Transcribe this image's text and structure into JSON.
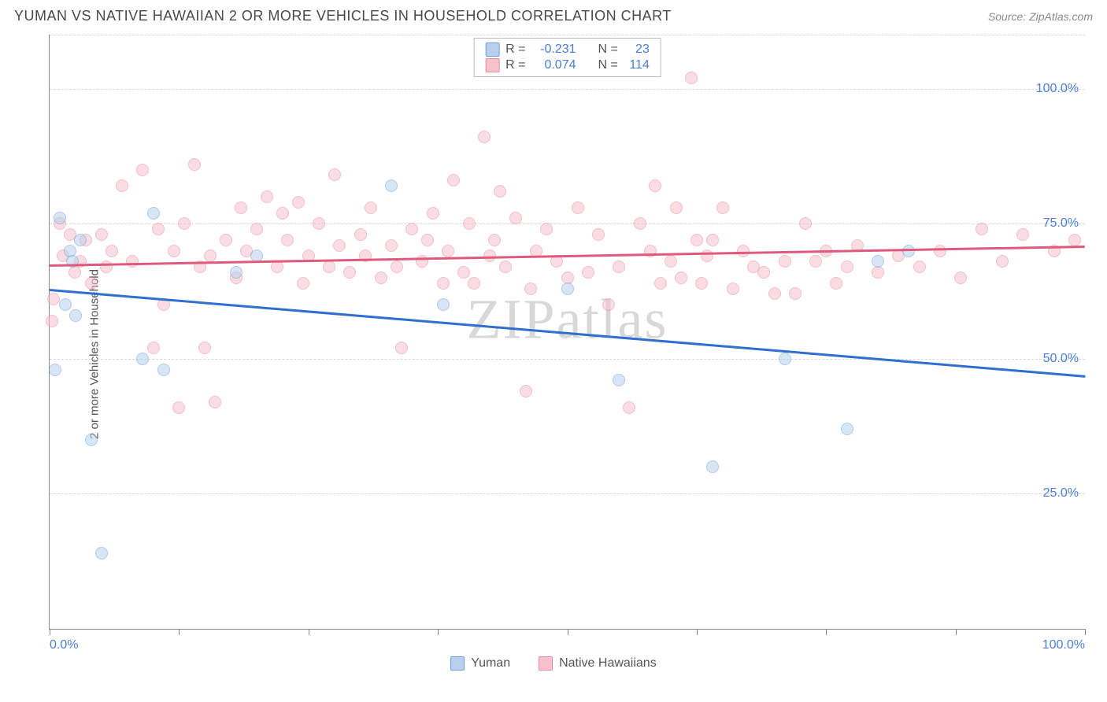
{
  "title": "YUMAN VS NATIVE HAWAIIAN 2 OR MORE VEHICLES IN HOUSEHOLD CORRELATION CHART",
  "source": "Source: ZipAtlas.com",
  "watermark": "ZIPatlas",
  "ylabel": "2 or more Vehicles in Household",
  "chart": {
    "type": "scatter",
    "xlim": [
      0,
      100
    ],
    "ylim": [
      0,
      110
    ],
    "background_color": "#ffffff",
    "grid_color": "#d8d8d8",
    "axis_color": "#888888",
    "tick_color": "#4a7fd6",
    "xtick_positions": [
      0,
      12.5,
      25,
      37.5,
      50,
      62.5,
      75,
      87.5,
      100
    ],
    "xtick_labels": {
      "0": "0.0%",
      "100": "100.0%"
    },
    "ytick_positions": [
      25,
      50,
      75,
      100
    ],
    "ytick_labels": {
      "25": "25.0%",
      "50": "50.0%",
      "75": "75.0%",
      "100": "100.0%"
    },
    "point_radius": 8,
    "point_opacity": 0.55
  },
  "series": {
    "yuman": {
      "label": "Yuman",
      "fill_color": "#b9d0ec",
      "stroke_color": "#6f9fd8",
      "R": "-0.231",
      "N": "23",
      "regression": {
        "x1": 0,
        "y1": 63,
        "x2": 100,
        "y2": 47,
        "color": "#2f6fd0",
        "width": 2.5
      },
      "points": [
        [
          0.5,
          48
        ],
        [
          1,
          76
        ],
        [
          1.5,
          60
        ],
        [
          2,
          70
        ],
        [
          2.2,
          68
        ],
        [
          2.5,
          58
        ],
        [
          3,
          72
        ],
        [
          4,
          35
        ],
        [
          5,
          14
        ],
        [
          9,
          50
        ],
        [
          10,
          77
        ],
        [
          11,
          48
        ],
        [
          18,
          66
        ],
        [
          20,
          69
        ],
        [
          33,
          82
        ],
        [
          38,
          60
        ],
        [
          50,
          63
        ],
        [
          55,
          46
        ],
        [
          64,
          30
        ],
        [
          71,
          50
        ],
        [
          77,
          37
        ],
        [
          80,
          68
        ],
        [
          83,
          70
        ]
      ]
    },
    "hawaiian": {
      "label": "Native Hawaiians",
      "fill_color": "#f5c2cd",
      "stroke_color": "#e88aa0",
      "R": "0.074",
      "N": "114",
      "regression": {
        "x1": 0,
        "y1": 67.5,
        "x2": 100,
        "y2": 71,
        "color": "#e05a7d",
        "width": 2.5
      },
      "points": [
        [
          0.2,
          57
        ],
        [
          0.4,
          61
        ],
        [
          1,
          75
        ],
        [
          1.3,
          69
        ],
        [
          2,
          73
        ],
        [
          2.4,
          66
        ],
        [
          3,
          68
        ],
        [
          3.5,
          72
        ],
        [
          4,
          64
        ],
        [
          5,
          73
        ],
        [
          5.5,
          67
        ],
        [
          6,
          70
        ],
        [
          7,
          82
        ],
        [
          8,
          68
        ],
        [
          9,
          85
        ],
        [
          10,
          52
        ],
        [
          10.5,
          74
        ],
        [
          11,
          60
        ],
        [
          12,
          70
        ],
        [
          12.5,
          41
        ],
        [
          13,
          75
        ],
        [
          14,
          86
        ],
        [
          14.5,
          67
        ],
        [
          15,
          52
        ],
        [
          15.5,
          69
        ],
        [
          16,
          42
        ],
        [
          17,
          72
        ],
        [
          18,
          65
        ],
        [
          18.5,
          78
        ],
        [
          19,
          70
        ],
        [
          20,
          74
        ],
        [
          21,
          80
        ],
        [
          22,
          67
        ],
        [
          22.5,
          77
        ],
        [
          23,
          72
        ],
        [
          24,
          79
        ],
        [
          24.5,
          64
        ],
        [
          25,
          69
        ],
        [
          26,
          75
        ],
        [
          27,
          67
        ],
        [
          27.5,
          84
        ],
        [
          28,
          71
        ],
        [
          29,
          66
        ],
        [
          30,
          73
        ],
        [
          30.5,
          69
        ],
        [
          31,
          78
        ],
        [
          32,
          65
        ],
        [
          33,
          71
        ],
        [
          33.5,
          67
        ],
        [
          34,
          52
        ],
        [
          35,
          74
        ],
        [
          36,
          68
        ],
        [
          36.5,
          72
        ],
        [
          37,
          77
        ],
        [
          38,
          64
        ],
        [
          38.5,
          70
        ],
        [
          39,
          83
        ],
        [
          40,
          66
        ],
        [
          40.5,
          75
        ],
        [
          41,
          64
        ],
        [
          42,
          91
        ],
        [
          42.5,
          69
        ],
        [
          43,
          72
        ],
        [
          43.5,
          81
        ],
        [
          44,
          67
        ],
        [
          45,
          76
        ],
        [
          46,
          44
        ],
        [
          46.5,
          63
        ],
        [
          47,
          70
        ],
        [
          48,
          74
        ],
        [
          49,
          68
        ],
        [
          50,
          65
        ],
        [
          51,
          78
        ],
        [
          52,
          66
        ],
        [
          53,
          73
        ],
        [
          54,
          60
        ],
        [
          55,
          67
        ],
        [
          56,
          41
        ],
        [
          57,
          75
        ],
        [
          58,
          70
        ],
        [
          58.5,
          82
        ],
        [
          59,
          64
        ],
        [
          60,
          68
        ],
        [
          60.5,
          78
        ],
        [
          61,
          65
        ],
        [
          62,
          102
        ],
        [
          62.5,
          72
        ],
        [
          63,
          64
        ],
        [
          63.5,
          69
        ],
        [
          64,
          72
        ],
        [
          65,
          78
        ],
        [
          66,
          63
        ],
        [
          67,
          70
        ],
        [
          68,
          67
        ],
        [
          69,
          66
        ],
        [
          70,
          62
        ],
        [
          71,
          68
        ],
        [
          72,
          62
        ],
        [
          73,
          75
        ],
        [
          74,
          68
        ],
        [
          75,
          70
        ],
        [
          76,
          64
        ],
        [
          77,
          67
        ],
        [
          78,
          71
        ],
        [
          80,
          66
        ],
        [
          82,
          69
        ],
        [
          84,
          67
        ],
        [
          86,
          70
        ],
        [
          88,
          65
        ],
        [
          90,
          74
        ],
        [
          92,
          68
        ],
        [
          94,
          73
        ],
        [
          97,
          70
        ],
        [
          99,
          72
        ]
      ]
    }
  },
  "stats_legend": {
    "r_label": "R =",
    "n_label": "N ="
  },
  "bottom_legend": [
    {
      "key": "yuman"
    },
    {
      "key": "hawaiian"
    }
  ]
}
